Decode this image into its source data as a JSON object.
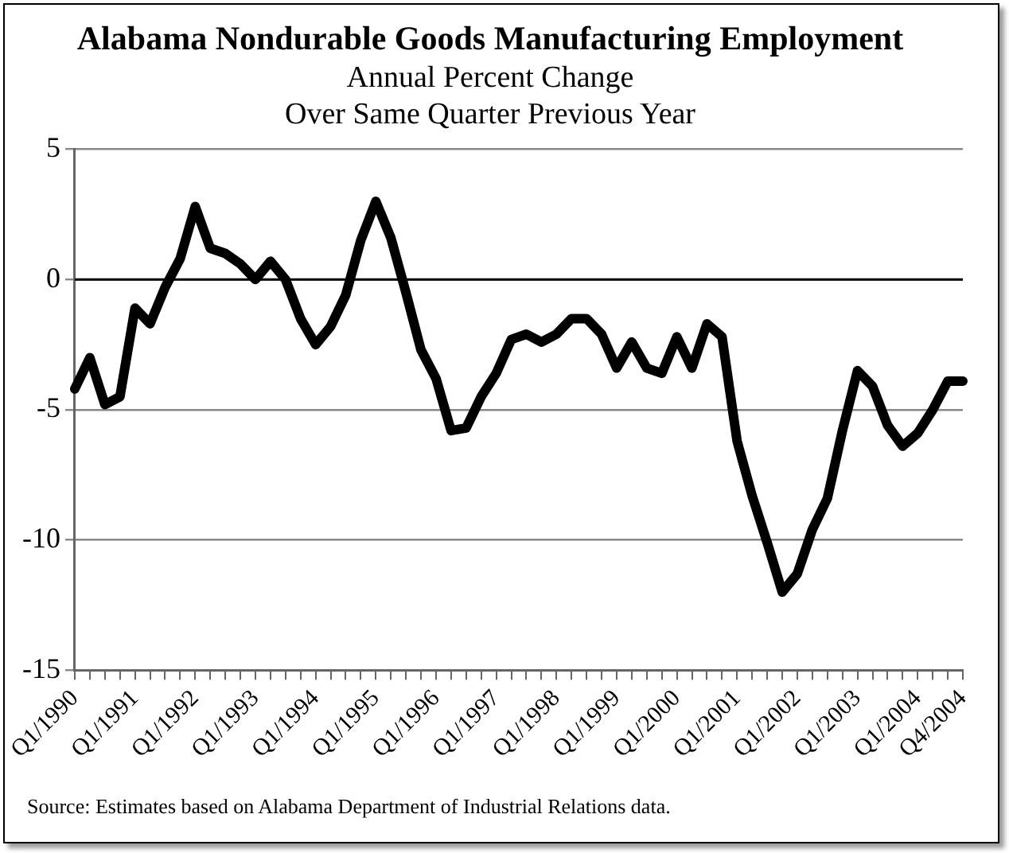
{
  "chart_data": {
    "type": "line",
    "title": "Alabama Nondurable Goods Manufacturing Employment",
    "subtitle": "Annual Percent Change\nOver Same Quarter Previous Year",
    "categories": [
      "Q1/1990",
      null,
      null,
      null,
      "Q1/1991",
      null,
      null,
      null,
      "Q1/1992",
      null,
      null,
      null,
      "Q1/1993",
      null,
      null,
      null,
      "Q1/1994",
      null,
      null,
      null,
      "Q1/1995",
      null,
      null,
      null,
      "Q1/1996",
      null,
      null,
      null,
      "Q1/1997",
      null,
      null,
      null,
      "Q1/1998",
      null,
      null,
      null,
      "Q1/1999",
      null,
      null,
      null,
      "Q1/2000",
      null,
      null,
      null,
      "Q1/2001",
      null,
      null,
      null,
      "Q1/2002",
      null,
      null,
      null,
      "Q1/2003",
      null,
      null,
      null,
      "Q1/2004",
      null,
      null,
      "Q4/2004"
    ],
    "series": [
      {
        "color": "#000000",
        "values": [
          -4.2,
          -3.0,
          -4.8,
          -4.5,
          -1.1,
          -1.7,
          -0.3,
          0.8,
          2.8,
          1.2,
          1.0,
          0.6,
          0.0,
          0.7,
          0.0,
          -1.5,
          -2.5,
          -1.8,
          -0.6,
          1.5,
          3.0,
          1.6,
          -0.5,
          -2.7,
          -3.8,
          -5.8,
          -5.7,
          -4.5,
          -3.6,
          -2.3,
          -2.1,
          -2.4,
          -2.1,
          -1.5,
          -1.5,
          -2.1,
          -3.4,
          -2.4,
          -3.4,
          -3.6,
          -2.2,
          -3.4,
          -1.7,
          -2.2,
          -6.2,
          -8.3,
          -10.1,
          -12.0,
          -11.3,
          -9.6,
          -8.4,
          -5.8,
          -3.5,
          -4.1,
          -5.6,
          -6.4,
          -5.9,
          -5.0,
          -3.9,
          -3.9
        ]
      }
    ],
    "ylim": [
      -15,
      5
    ],
    "yticks": [
      -15,
      -10,
      -5,
      0,
      5
    ],
    "grid": "y",
    "legend": false,
    "marker": "none",
    "line_style": "solid",
    "ref_lines": [
      {
        "axis": "y",
        "value": 0,
        "color": "#000000",
        "line_style": "solid"
      }
    ],
    "annotations": [
      "Source:  Estimates based on Alabama Department of Industrial Relations data."
    ]
  }
}
